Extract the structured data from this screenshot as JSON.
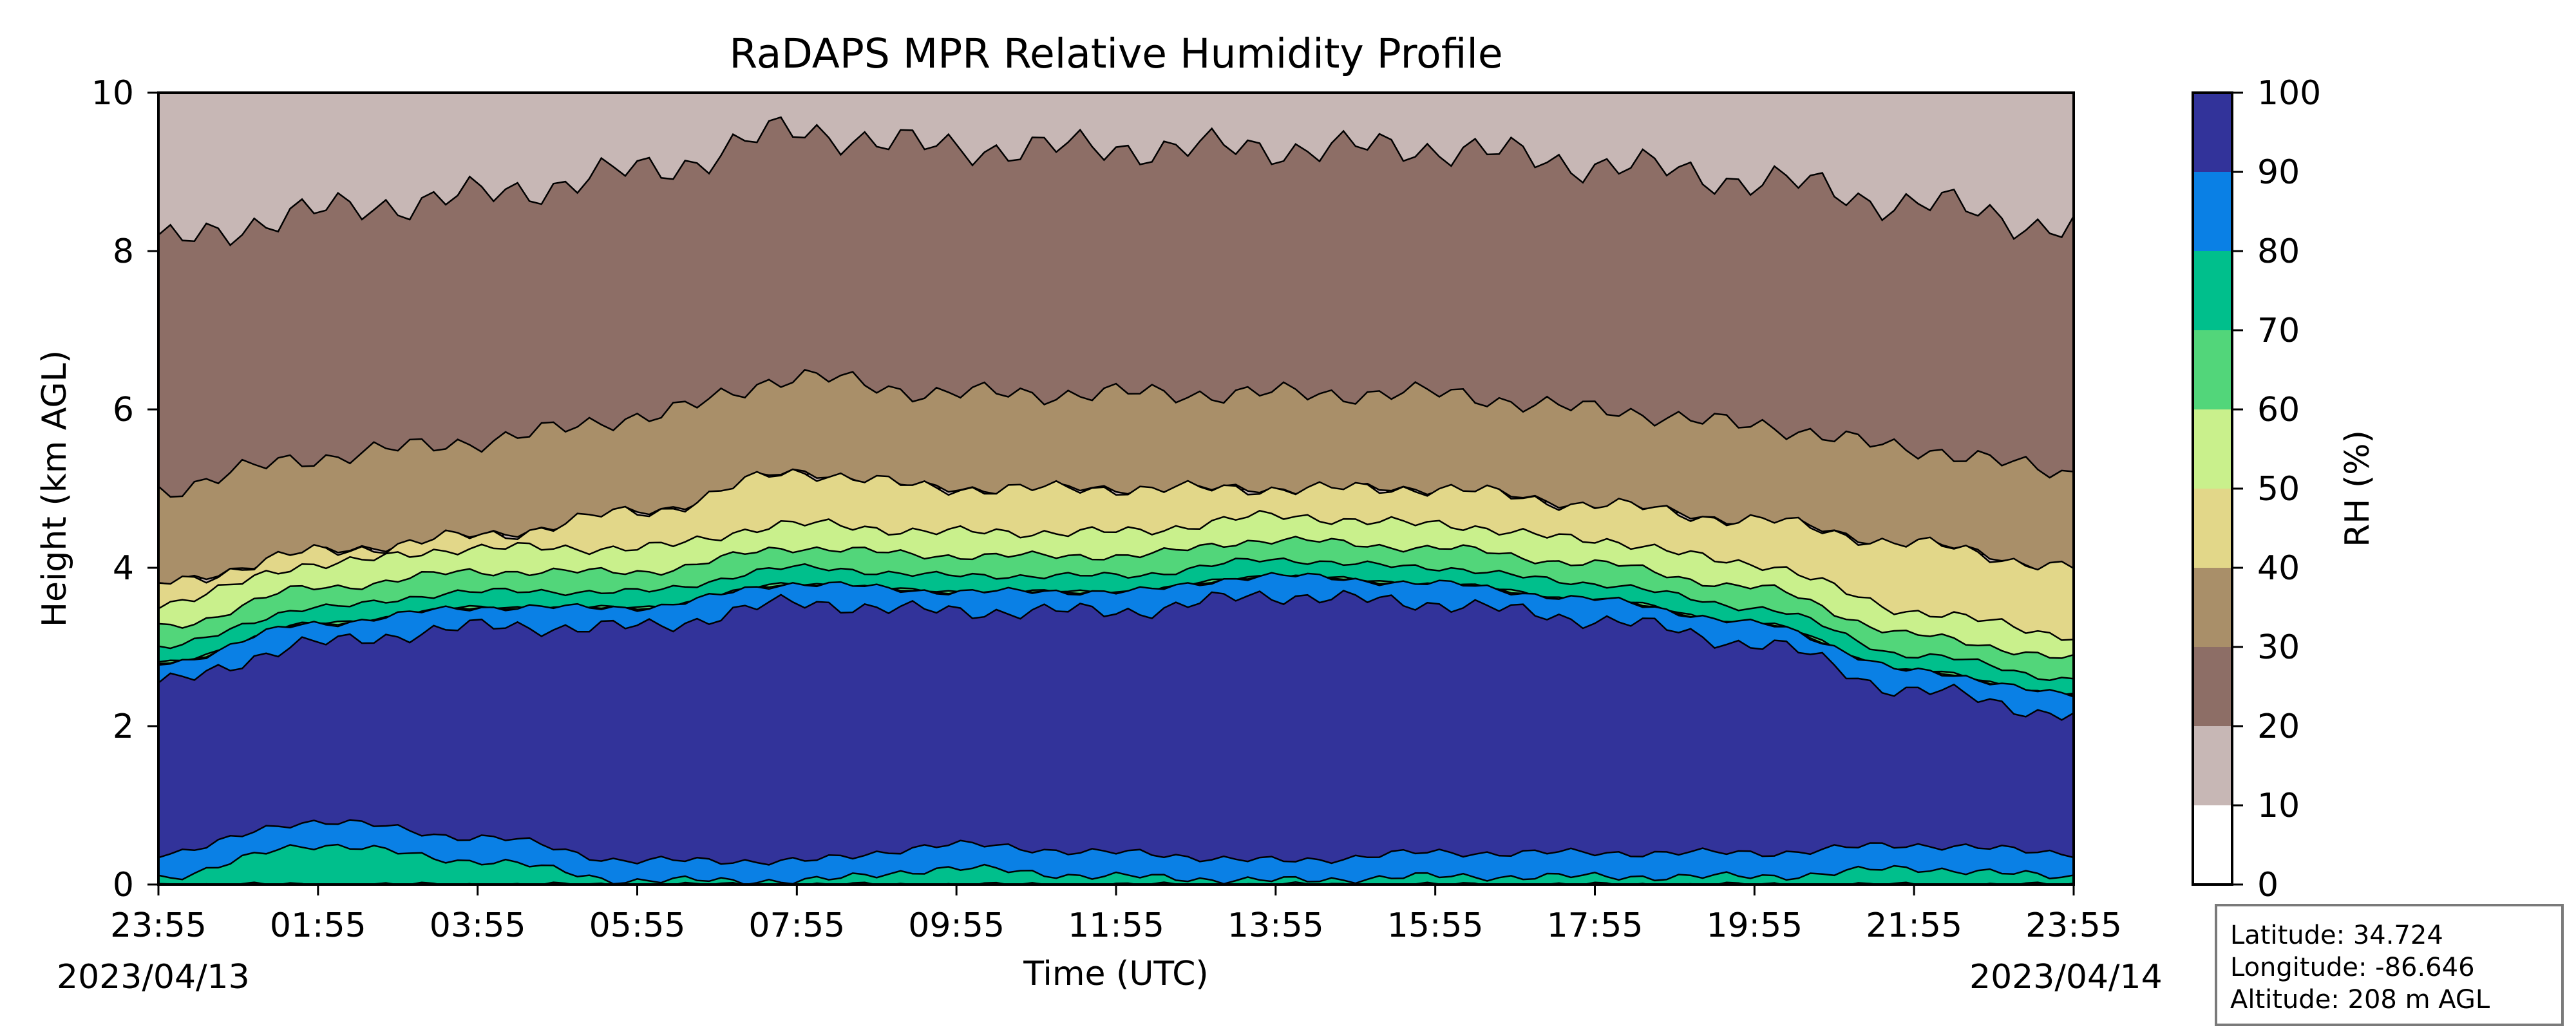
{
  "chart_data": {
    "type": "heatmap",
    "title": "RaDAPS MPR Relative Humidity Profile",
    "xlabel": "Time (UTC)",
    "ylabel": "Height (km AGL)",
    "x_ticks": [
      "23:55",
      "01:55",
      "03:55",
      "05:55",
      "07:55",
      "09:55",
      "11:55",
      "13:55",
      "15:55",
      "17:55",
      "19:55",
      "21:55",
      "23:55"
    ],
    "date_start": "2023/04/13",
    "date_end": "2023/04/14",
    "ylim": [
      0,
      10
    ],
    "y_ticks": [
      "0",
      "2",
      "4",
      "6",
      "8",
      "10"
    ],
    "colorbar": {
      "label": "RH (%)",
      "ticks": [
        "0",
        "10",
        "20",
        "30",
        "40",
        "50",
        "60",
        "70",
        "80",
        "90",
        "100"
      ],
      "levels": [
        0,
        10,
        20,
        30,
        40,
        50,
        60,
        70,
        80,
        90,
        100
      ],
      "colors": [
        "#ffffff",
        "#c7b7b5",
        "#8d6e66",
        "#a98f69",
        "#e2d789",
        "#c9f08c",
        "#52d67a",
        "#00bf8c",
        "#0a80e5",
        "#32339a"
      ]
    },
    "approx_layers": {
      "times": [
        "23:55",
        "01:55",
        "03:55",
        "05:55",
        "07:55",
        "09:55",
        "11:55",
        "13:55",
        "15:55",
        "17:55",
        "19:55",
        "21:55",
        "23:55"
      ],
      "rh_above_80_km": [
        [
          0.4,
          2.8
        ],
        [
          0.8,
          3.3
        ],
        [
          0.6,
          3.5
        ],
        [
          0.3,
          3.5
        ],
        [
          0.3,
          3.8
        ],
        [
          0.5,
          3.7
        ],
        [
          0.4,
          3.7
        ],
        [
          0.3,
          3.9
        ],
        [
          0.4,
          3.8
        ],
        [
          0.4,
          3.6
        ],
        [
          0.4,
          3.3
        ],
        [
          0.5,
          2.7
        ],
        [
          0.4,
          2.4
        ]
      ],
      "rh_above_40_km": [
        3.8,
        4.2,
        4.4,
        4.7,
        5.2,
        5.0,
        5.0,
        5.0,
        5.0,
        4.8,
        4.6,
        4.3,
        4.0
      ]
    }
  },
  "info": {
    "latitude": "Latitude: 34.724",
    "longitude": "Longitude: -86.646",
    "altitude": "Altitude: 208 m AGL"
  }
}
